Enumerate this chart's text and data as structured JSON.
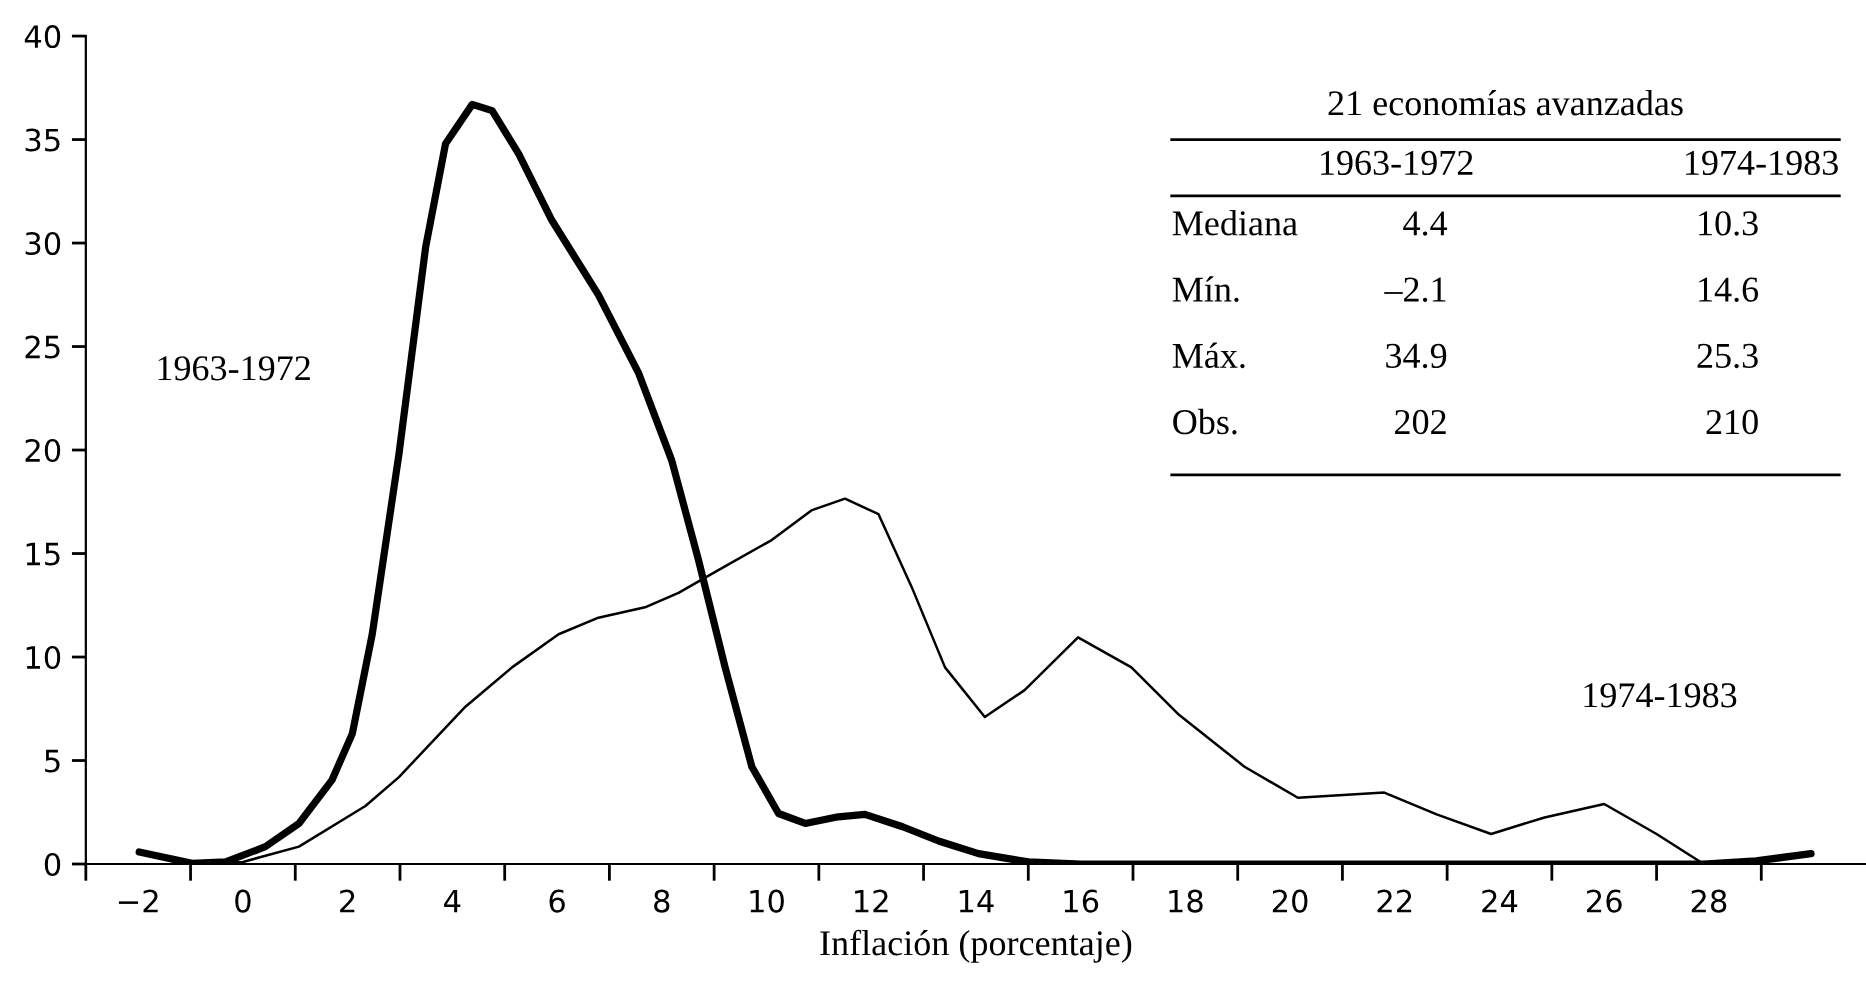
{
  "chart_data": {
    "type": "line",
    "xlabel": "Inflación (porcentaje)",
    "xlim": [
      -3,
      31
    ],
    "ylim": [
      0,
      40
    ],
    "xticks": [
      {
        "value": -3,
        "label": null
      },
      {
        "value": -2,
        "label": "−2"
      },
      {
        "value": -1,
        "label": null
      },
      0,
      {
        "value": 1,
        "label": null
      },
      2,
      {
        "value": 3,
        "label": null
      },
      4,
      {
        "value": 5,
        "label": null
      },
      6,
      {
        "value": 7,
        "label": null
      },
      8,
      {
        "value": 9,
        "label": null
      },
      10,
      {
        "value": 11,
        "label": null
      },
      12,
      {
        "value": 13,
        "label": null
      },
      14,
      {
        "value": 15,
        "label": null
      },
      16,
      {
        "value": 17,
        "label": null
      },
      18,
      {
        "value": 19,
        "label": null
      },
      20,
      {
        "value": 21,
        "label": null
      },
      22,
      {
        "value": 23,
        "label": null
      },
      24,
      {
        "value": 25,
        "label": null
      },
      26,
      {
        "value": 27,
        "label": null
      },
      28,
      {
        "value": 29,
        "label": null
      }
    ],
    "yticks": [
      0,
      5,
      10,
      15,
      20,
      25,
      30,
      35,
      40
    ],
    "grid": false,
    "legend": false,
    "marker": "none",
    "line_style": "solid",
    "series": [
      {
        "name": "1963-1972",
        "color": "#000000",
        "x": [
          -1.98,
          -0.97,
          -0.33,
          0.43,
          1.07,
          1.7,
          2.09,
          2.47,
          2.98,
          3.49,
          3.87,
          4.38,
          4.76,
          5.27,
          5.9,
          6.79,
          7.56,
          8.19,
          8.7,
          9.21,
          9.72,
          10.23,
          10.74,
          11.37,
          11.88,
          12.6,
          13.3,
          14.05,
          15.0,
          16.0,
          18.0,
          20.0,
          22.0,
          24.0,
          26.0,
          27.9,
          28.9,
          29.95
        ],
        "values": [
          0.58,
          0.03,
          0.1,
          0.84,
          1.96,
          4.05,
          6.3,
          11.1,
          19.8,
          29.8,
          34.8,
          36.7,
          36.4,
          34.3,
          31.1,
          27.5,
          23.7,
          19.5,
          14.7,
          9.5,
          4.7,
          2.44,
          1.96,
          2.28,
          2.4,
          1.8,
          1.1,
          0.5,
          0.1,
          0,
          0,
          0,
          0,
          0,
          0,
          0,
          0.15,
          0.5
        ]
      },
      {
        "name": "1974-1983",
        "color": "#000000",
        "x": [
          -0.97,
          0,
          1.07,
          2.34,
          2.98,
          4.25,
          5.14,
          6.03,
          6.79,
          7.68,
          8.32,
          9.08,
          10.1,
          10.87,
          11.5,
          12.14,
          12.77,
          13.41,
          14.17,
          14.93,
          15.95,
          16.97,
          17.86,
          19.13,
          20.15,
          21.8,
          22.8,
          23.84,
          24.86,
          26.0,
          27.0,
          27.9,
          28.6
        ],
        "values": [
          0,
          0.1,
          0.84,
          2.8,
          4.2,
          7.6,
          9.5,
          11.1,
          11.9,
          12.4,
          13.1,
          14.2,
          15.65,
          17.1,
          17.65,
          16.9,
          13.4,
          9.5,
          7.1,
          8.4,
          10.95,
          9.5,
          7.25,
          4.7,
          3.2,
          3.45,
          2.4,
          1.45,
          2.25,
          2.9,
          1.45,
          0,
          0
        ]
      }
    ],
    "annotations": [
      "21 economías avanzadas",
      "1963-1972",
      "1974-1983",
      "Mediana",
      "4.4",
      "10.3",
      "Mín.",
      "–2.1",
      "14.6",
      "Máx.",
      "34.9",
      "25.3",
      "Obs.",
      "202",
      "210"
    ]
  }
}
